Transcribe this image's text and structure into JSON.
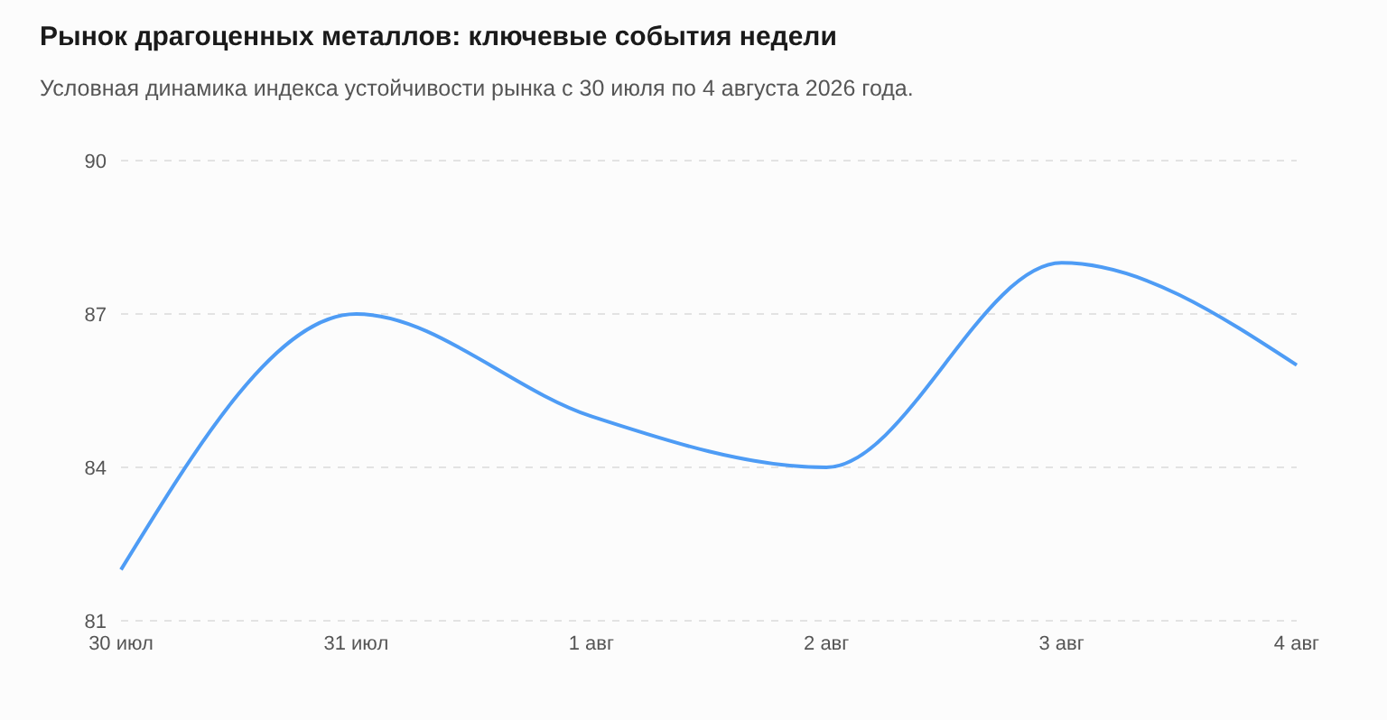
{
  "chart_data": {
    "type": "line",
    "title": "Рынок драгоценных металлов: ключевые события недели",
    "subtitle": "Условная динамика индекса устойчивости рынка с 30 июля по 4 августа 2026 года.",
    "categories": [
      "30 июл",
      "31 июл",
      "1 авг",
      "2 авг",
      "3 авг",
      "4 авг"
    ],
    "series": [
      {
        "color": "#4e9cf5",
        "values": [
          82,
          87,
          85,
          84,
          88,
          86
        ]
      }
    ],
    "ylim": [
      81,
      90
    ],
    "yticks": [
      81,
      84,
      87,
      90
    ],
    "grid": "y",
    "legend": false,
    "marker": "none",
    "line_style": "solid"
  }
}
